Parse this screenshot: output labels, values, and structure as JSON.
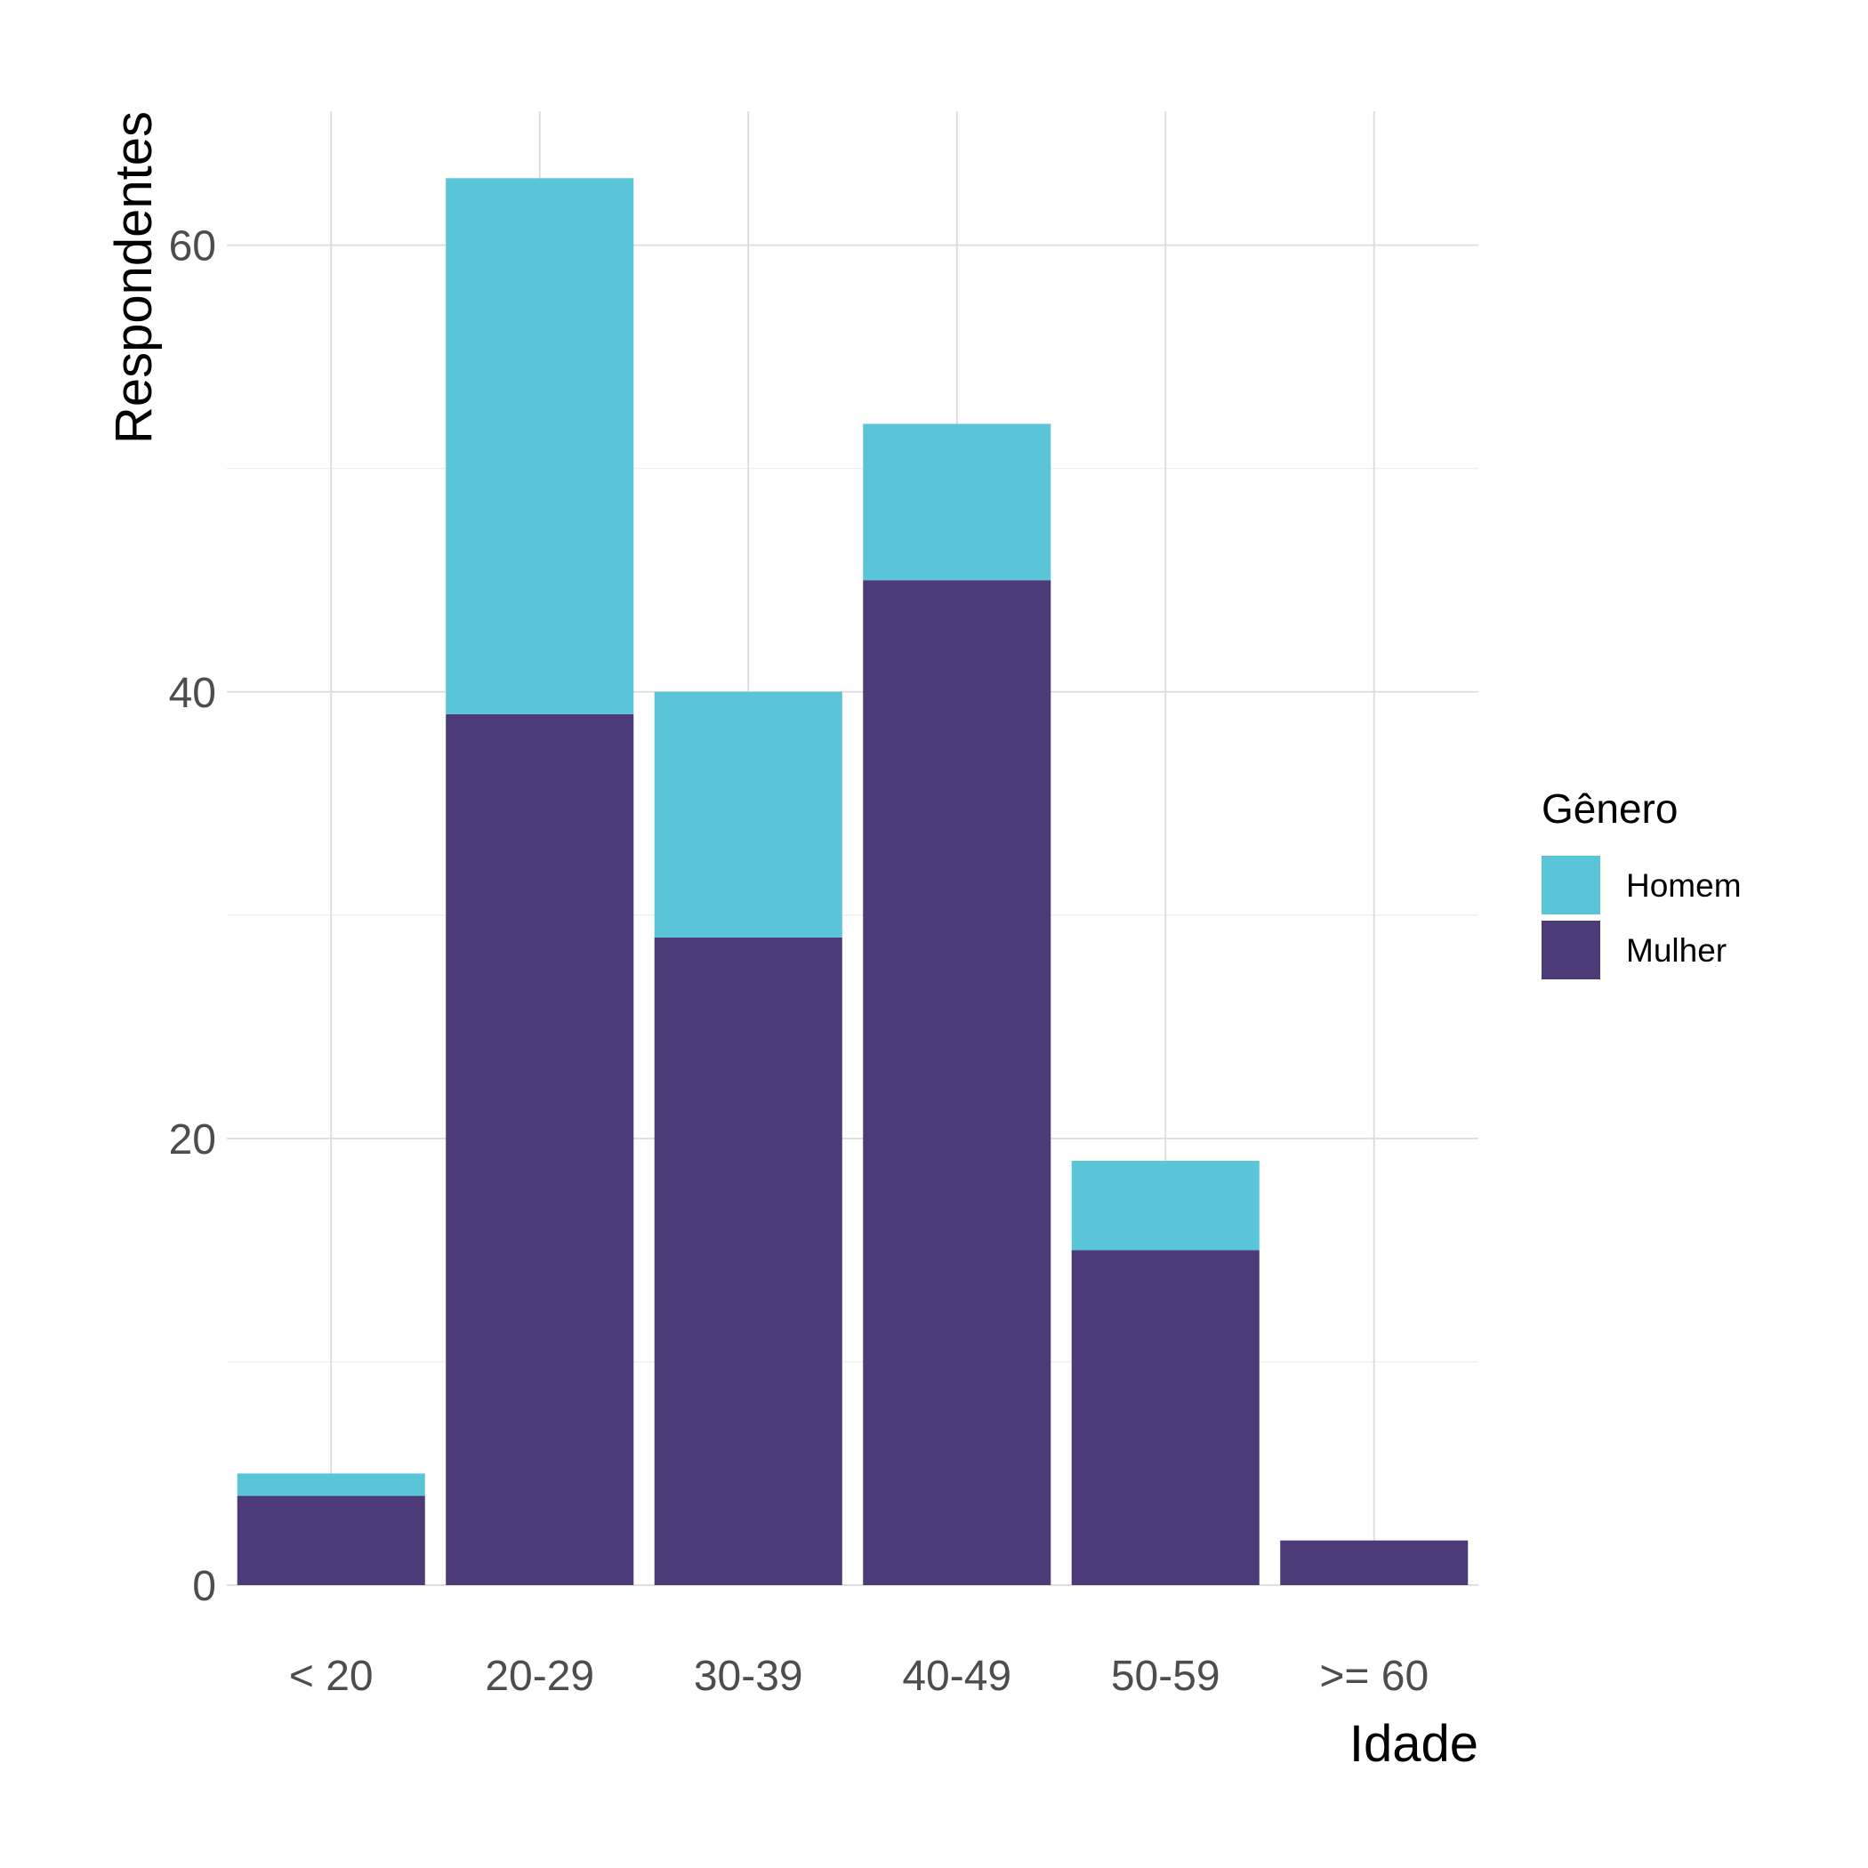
{
  "chart_data": {
    "type": "bar",
    "stacked": true,
    "xlabel": "Idade",
    "ylabel": "Respondentes",
    "categories": [
      "< 20",
      "20-29",
      "30-39",
      "40-49",
      "50-59",
      ">= 60"
    ],
    "series": [
      {
        "name": "Mulher",
        "color": "#4d3b78",
        "values": [
          4,
          39,
          29,
          45,
          15,
          2
        ]
      },
      {
        "name": "Homem",
        "color": "#5bc5d8",
        "values": [
          1,
          24,
          11,
          7,
          4,
          0
        ]
      }
    ],
    "ylim": [
      0,
      66
    ],
    "yticks": [
      0,
      20,
      40,
      60
    ],
    "grid": true,
    "legend": {
      "title": "Gênero",
      "position": "right",
      "order": [
        "Homem",
        "Mulher"
      ]
    }
  }
}
